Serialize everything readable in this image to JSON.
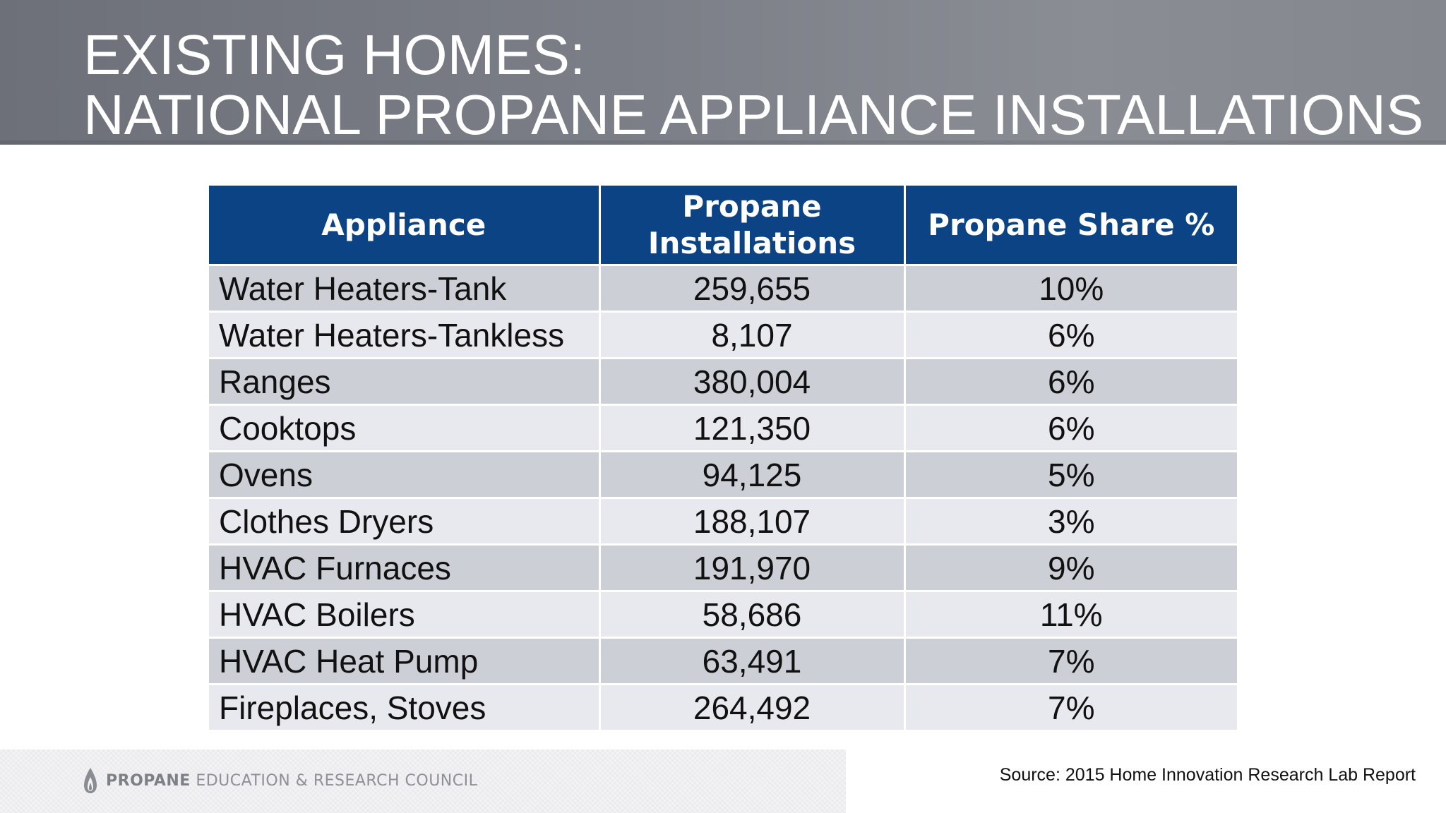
{
  "slide": {
    "title_line1": "EXISTING HOMES:",
    "title_line2": "NATIONAL PROPANE APPLIANCE INSTALLATIONS"
  },
  "table": {
    "headers": [
      "Appliance",
      "Propane Installations",
      "Propane Share %"
    ],
    "header_lines": {
      "col2_line1": "Propane",
      "col2_line2": "Installations"
    },
    "rows": [
      {
        "appliance": "Water Heaters-Tank",
        "installations": "259,655",
        "share": "10%"
      },
      {
        "appliance": "Water Heaters-Tankless",
        "installations": "8,107",
        "share": "6%"
      },
      {
        "appliance": "Ranges",
        "installations": "380,004",
        "share": "6%"
      },
      {
        "appliance": "Cooktops",
        "installations": "121,350",
        "share": "6%"
      },
      {
        "appliance": "Ovens",
        "installations": "94,125",
        "share": "5%"
      },
      {
        "appliance": "Clothes Dryers",
        "installations": "188,107",
        "share": "3%"
      },
      {
        "appliance": "HVAC Furnaces",
        "installations": "191,970",
        "share": "9%"
      },
      {
        "appliance": "HVAC Boilers",
        "installations": "58,686",
        "share": "11%"
      },
      {
        "appliance": "HVAC Heat Pump",
        "installations": "63,491",
        "share": "7%"
      },
      {
        "appliance": "Fireplaces, Stoves",
        "installations": "264,492",
        "share": "7%"
      }
    ]
  },
  "footer": {
    "logo_icon": "flame-icon",
    "org_strong": "PROPANE",
    "org_rest": " EDUCATION & RESEARCH COUNCIL",
    "source": "Source: 2015 Home Innovation Research Lab Report"
  },
  "colors": {
    "title_band": "#7c7f87",
    "header_bg": "#0b4385",
    "row_odd": "#cdcfd7",
    "row_even": "#e8e9ee"
  }
}
